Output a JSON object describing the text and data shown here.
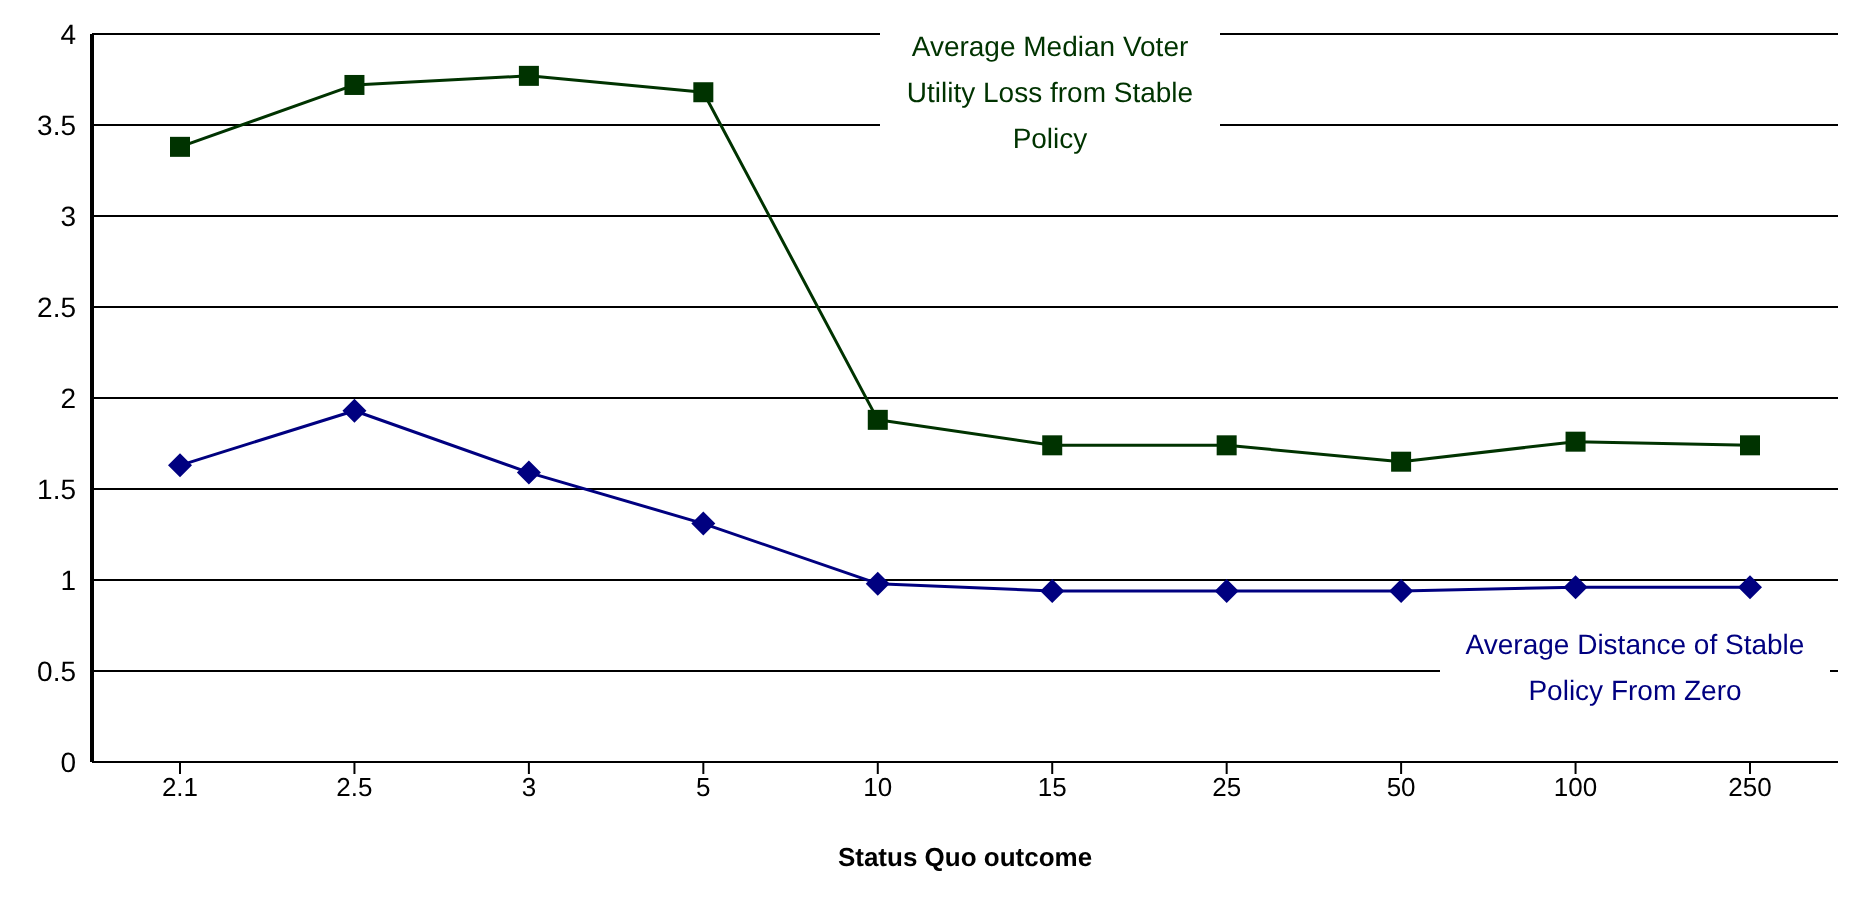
{
  "chart_data": {
    "type": "line",
    "xlabel": "Status Quo outcome",
    "categories": [
      "2.1",
      "2.5",
      "3",
      "5",
      "10",
      "15",
      "25",
      "50",
      "100",
      "250"
    ],
    "series": [
      {
        "name": "Average Median Voter Utility Loss from Stable Policy",
        "color": "#003300",
        "marker": "square",
        "values": [
          3.38,
          3.72,
          3.77,
          3.68,
          1.88,
          1.74,
          1.74,
          1.65,
          1.76,
          1.74
        ]
      },
      {
        "name": "Average Distance of Stable Policy From Zero",
        "color": "#000080",
        "marker": "diamond",
        "values": [
          1.63,
          1.93,
          1.59,
          1.31,
          0.98,
          0.94,
          0.94,
          0.94,
          0.96,
          0.96
        ]
      }
    ],
    "ylim": [
      0,
      4
    ],
    "yticks": [
      0,
      0.5,
      1,
      1.5,
      2,
      2.5,
      3,
      3.5,
      4
    ],
    "grid": "y"
  }
}
